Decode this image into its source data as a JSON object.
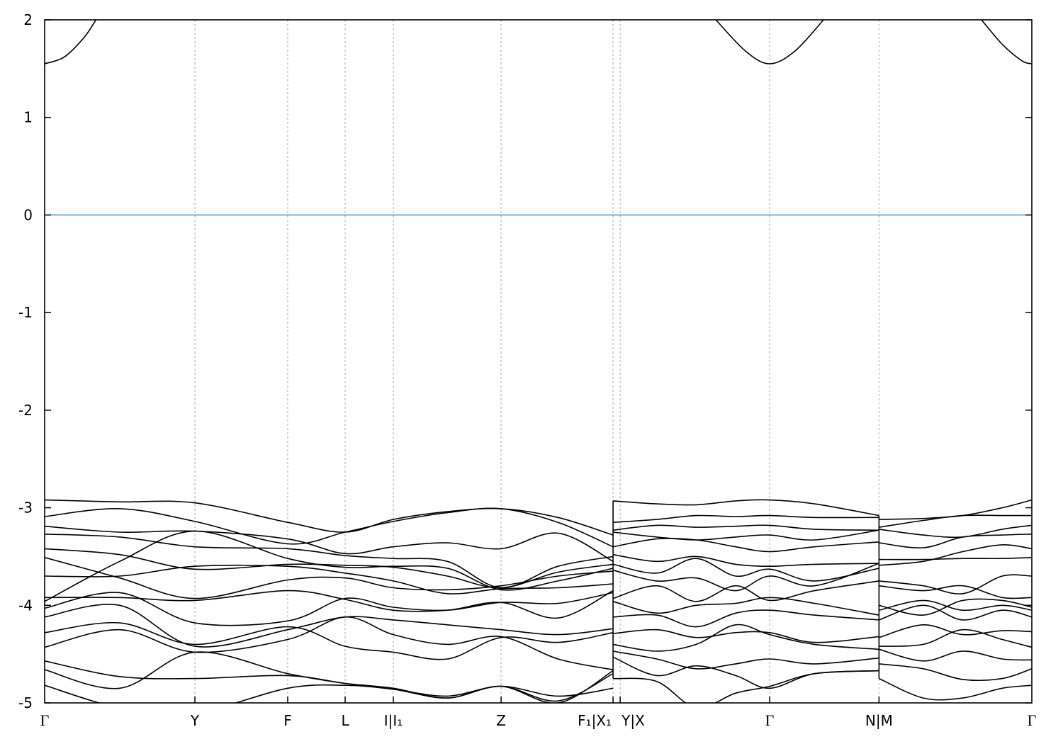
{
  "chart_data": {
    "type": "line",
    "title": "",
    "xlabel": "",
    "ylabel": "",
    "xlim": [
      0,
      5.0
    ],
    "ylim": [
      -5,
      2
    ],
    "yticks": [
      -5,
      -4,
      -3,
      -2,
      -1,
      0,
      1,
      2
    ],
    "xticks": [
      {
        "k": 0,
        "label": "Γ"
      },
      {
        "k": 0.761,
        "label": "Y"
      },
      {
        "k": 1.231,
        "label": "F"
      },
      {
        "k": 1.522,
        "label": "L"
      },
      {
        "k": 1.766,
        "label": "I|I₁"
      },
      {
        "k": 2.312,
        "label": "Z"
      },
      {
        "k": 2.879,
        "label": "F₁|X₁"
      },
      {
        "k": 2.915,
        "label": "Y|X"
      },
      {
        "k": 3.672,
        "label": "Γ"
      },
      {
        "k": 4.226,
        "label": "N|M"
      },
      {
        "k": 5.0,
        "label": "Γ"
      }
    ],
    "grid": "vertical dashed at high-symmetry points",
    "fermi_level": 0,
    "colors": {
      "bands": "#000000",
      "fermi": "#3a9ad9",
      "grid": "#aaaaaa"
    },
    "segments": [
      {
        "k": [
          0,
          0.38,
          0.761,
          1.231,
          1.522,
          1.766,
          2.04,
          2.312,
          2.6,
          2.879
        ],
        "bands": [
          [
            -2.92,
            -2.94,
            -2.95,
            -3.15,
            -3.25,
            -3.12,
            -3.04,
            -3.01,
            -3.1,
            -3.28
          ],
          [
            -3.09,
            -3.01,
            -3.14,
            -3.37,
            -3.25,
            -3.14,
            -3.05,
            -3.01,
            -3.15,
            -3.4
          ],
          [
            -3.19,
            -3.25,
            -3.24,
            -3.32,
            -3.47,
            -3.4,
            -3.36,
            -3.42,
            -3.26,
            -3.55
          ],
          [
            -3.27,
            -3.3,
            -3.4,
            -3.42,
            -3.49,
            -3.52,
            -3.55,
            -3.82,
            -3.6,
            -3.5
          ],
          [
            -3.96,
            -3.55,
            -3.24,
            -3.52,
            -3.61,
            -3.6,
            -3.62,
            -3.84,
            -3.75,
            -3.62
          ],
          [
            -3.42,
            -3.48,
            -3.63,
            -3.58,
            -3.59,
            -3.61,
            -3.7,
            -3.82,
            -3.66,
            -3.58
          ],
          [
            -3.51,
            -3.72,
            -3.93,
            -3.74,
            -3.72,
            -3.82,
            -3.84,
            -3.8,
            -3.7,
            -3.65
          ],
          [
            -3.7,
            -3.7,
            -3.6,
            -3.6,
            -3.67,
            -3.75,
            -3.88,
            -3.83,
            -3.82,
            -3.78
          ],
          [
            -3.92,
            -3.92,
            -3.95,
            -3.85,
            -3.94,
            -4.05,
            -4.05,
            -3.97,
            -4.13,
            -3.85
          ],
          [
            -4.03,
            -3.87,
            -4.18,
            -4.16,
            -3.93,
            -4.02,
            -4.05,
            -3.97,
            -3.98,
            -3.87
          ],
          [
            -4.12,
            -4.0,
            -4.42,
            -4.25,
            -4.12,
            -4.15,
            -4.2,
            -4.25,
            -4.3,
            -4.24
          ],
          [
            -4.28,
            -4.18,
            -4.4,
            -4.22,
            -4.42,
            -4.48,
            -4.55,
            -4.33,
            -4.38,
            -4.28
          ],
          [
            -4.43,
            -4.25,
            -4.48,
            -4.35,
            -4.12,
            -4.3,
            -4.4,
            -4.32,
            -4.55,
            -4.66
          ],
          [
            -4.57,
            -4.73,
            -4.75,
            -4.72,
            -4.8,
            -4.85,
            -4.95,
            -4.83,
            -5.0,
            -4.67
          ],
          [
            -4.66,
            -4.85,
            -4.48,
            -4.7,
            -4.8,
            -4.86,
            -4.93,
            -4.83,
            -4.93,
            -4.85
          ],
          [
            -4.82,
            -5.05,
            -5.1,
            -4.85,
            -4.82,
            -4.86,
            -4.95,
            -4.83,
            -4.98,
            -4.7
          ]
        ]
      },
      {
        "k": [
          2.879,
          3.1,
          3.3,
          3.5,
          3.672,
          3.9,
          4.226
        ],
        "bands": [
          [
            -2.93,
            -2.96,
            -2.97,
            -2.93,
            -2.92,
            -2.96,
            -3.08
          ],
          [
            -3.15,
            -3.12,
            -3.08,
            -3.09,
            -3.08,
            -3.1,
            -3.1
          ],
          [
            -3.23,
            -3.18,
            -3.2,
            -3.19,
            -3.18,
            -3.22,
            -3.23
          ],
          [
            -3.25,
            -3.3,
            -3.33,
            -3.3,
            -3.28,
            -3.33,
            -3.23
          ],
          [
            -3.4,
            -3.32,
            -3.33,
            -3.4,
            -3.45,
            -3.4,
            -3.35
          ],
          [
            -3.48,
            -3.55,
            -3.5,
            -3.58,
            -3.6,
            -3.58,
            -3.57
          ],
          [
            -3.58,
            -3.67,
            -3.52,
            -3.7,
            -3.63,
            -3.75,
            -3.62
          ],
          [
            -3.64,
            -3.75,
            -3.72,
            -3.85,
            -3.7,
            -3.8,
            -3.57
          ],
          [
            -3.93,
            -3.8,
            -3.96,
            -3.8,
            -3.95,
            -3.85,
            -3.75
          ],
          [
            -3.96,
            -4.08,
            -4.0,
            -3.98,
            -3.92,
            -3.98,
            -4.1
          ],
          [
            -4.12,
            -4.1,
            -4.22,
            -4.08,
            -4.05,
            -4.1,
            -4.15
          ],
          [
            -4.29,
            -4.25,
            -4.33,
            -4.28,
            -4.28,
            -4.38,
            -4.32
          ],
          [
            -4.4,
            -4.47,
            -4.4,
            -4.2,
            -4.3,
            -4.4,
            -4.45
          ],
          [
            -4.47,
            -4.55,
            -4.65,
            -4.6,
            -4.55,
            -4.6,
            -4.54
          ],
          [
            -4.53,
            -4.72,
            -4.62,
            -4.72,
            -4.85,
            -4.7,
            -4.67
          ],
          [
            -4.75,
            -4.78,
            -5.05,
            -4.9,
            -4.83,
            -4.7,
            -4.67
          ]
        ]
      },
      {
        "k": [
          4.226,
          4.45,
          4.65,
          4.85,
          5.0
        ],
        "bands": [
          [
            -3.12,
            -3.11,
            -3.08,
            -3.0,
            -2.92
          ],
          [
            -3.2,
            -3.13,
            -3.08,
            -3.08,
            -3.08
          ],
          [
            -3.22,
            -3.28,
            -3.3,
            -3.22,
            -3.18
          ],
          [
            -3.36,
            -3.41,
            -3.3,
            -3.28,
            -3.27
          ],
          [
            -3.53,
            -3.53,
            -3.52,
            -3.52,
            -3.51
          ],
          [
            -3.59,
            -3.55,
            -3.45,
            -3.38,
            -3.42
          ],
          [
            -3.75,
            -3.8,
            -3.88,
            -3.7,
            -3.7
          ],
          [
            -3.8,
            -3.85,
            -3.8,
            -3.92,
            -3.92
          ],
          [
            -4.0,
            -4.1,
            -3.95,
            -3.95,
            -4.02
          ],
          [
            -4.05,
            -3.95,
            -4.05,
            -4.0,
            -4.05
          ],
          [
            -4.15,
            -4.0,
            -4.15,
            -4.05,
            -4.12
          ],
          [
            -4.33,
            -4.2,
            -4.3,
            -4.26,
            -4.27
          ],
          [
            -4.42,
            -4.4,
            -4.25,
            -4.35,
            -4.43
          ],
          [
            -4.45,
            -4.57,
            -4.47,
            -4.55,
            -4.56
          ],
          [
            -4.6,
            -4.65,
            -4.76,
            -4.75,
            -4.65
          ],
          [
            -4.75,
            -4.95,
            -4.95,
            -4.85,
            -4.82
          ]
        ]
      }
    ],
    "conduction_band": [
      {
        "k": [
          0,
          0.1,
          0.2,
          0.26
        ],
        "E": [
          1.55,
          1.62,
          1.82,
          2.0
        ]
      },
      {
        "k": [
          3.4,
          3.55,
          3.672,
          3.8,
          3.945
        ],
        "E": [
          2.0,
          1.68,
          1.55,
          1.68,
          2.0
        ]
      },
      {
        "k": [
          4.745,
          4.85,
          4.95,
          5.0
        ],
        "E": [
          2.0,
          1.75,
          1.58,
          1.55
        ]
      }
    ]
  }
}
